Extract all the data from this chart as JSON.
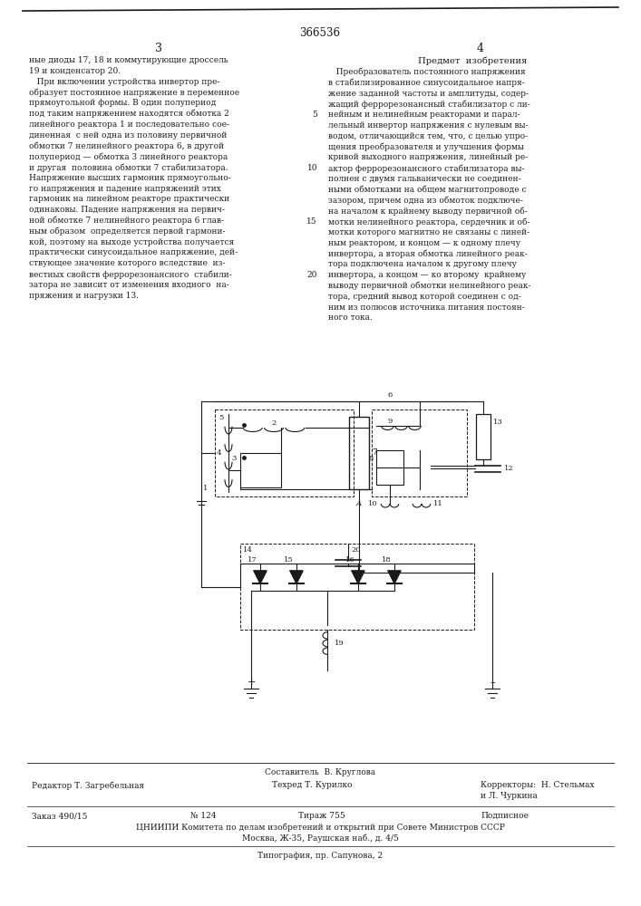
{
  "patent_number": "366536",
  "page_left": "3",
  "page_right": "4",
  "left_text_lines": [
    "ные диоды 17, 18 и коммутирующие дроссель",
    "19 и конденсатор 20.",
    "   При включении устройства инвертор пре-",
    "образует постоянное напряжение в переменное",
    "прямоугольной формы. В один полупериод",
    "под таким напряжением находятся обмотка 2",
    "линейного реактора 1 и последовательно сое-",
    "диненная  с ней одна из половину первичной",
    "обмотки 7 нелинейного реактора 6, в другой",
    "полупериод — обмотка 3 линейного реактора",
    "и другая  половина обмотки 7 стабилизатора.",
    "Напряжение высших гармоник прямоугольно-",
    "го напряжения и падение напряжений этих",
    "гармоник на линейном реакторе практически",
    "одинаковы. Падение напряжения на первич-",
    "ной обмотке 7 нелинейного реактора 6 глав-",
    "ным образом  определяется первой гармони-",
    "кой, поэтому на выходе устройства получается",
    "практически синусоидальное напряжение, дей-",
    "ствующее значение которого вследствие  из-",
    "вестных свойств феррорезонансного  стабили-",
    "затора не зависит от изменения входного  на-",
    "пряжения и нагрузки 13."
  ],
  "right_heading": "Предмет  изобретения",
  "right_text_lines": [
    "   Преобразователь постоянного напряжения",
    "в стабилизированное синусоидальное напря-",
    "жение заданной частоты и амплитуды, содер-",
    "жащий феррорезонансный стабилизатор с ли-",
    "нейным и нелинейным реакторами и парал-",
    "лельный инвертор напряжения с нулевым вы-",
    "водом, отличающийся тем, что, с целью упро-",
    "щения преобразователя и улучшения формы",
    "кривой выходного напряжения, линейный ре-",
    "актор феррорезонансного стабилизатора вы-",
    "полнен с двумя гальванически не соединен-",
    "ными обмотками на общем магнитопроводе с",
    "зазором, причем одна из обмоток подключе-",
    "на началом к крайнему выводу первичной об-",
    "мотки нелинейного реактора, сердечник и об-",
    "мотки которого магнитно не связаны с линей-",
    "ным реактором, и концом — к одному плечу",
    "инвертора, а вторая обмотка линейного реак-",
    "тора подключена началом к другому плечу",
    "инвертора, а концом — ко второму  крайнему",
    "выводу первичной обмотки нелинейного реак-",
    "тора, средний вывод которой соединен с од-",
    "ним из полюсов источника питания постоян-",
    "ного тока."
  ],
  "footer_sestavitel": "Составитель  В. Круглова",
  "footer_redaktor": "Редактор Т. Загребельная",
  "footer_tekhred": "Техред Т. Курилко",
  "footer_korrektor1": "Корректоры:  Н. Стельмах",
  "footer_korrektor2": "и Л. Чуркина",
  "footer_zakaz": "Заказ 490/15",
  "footer_num": "№ 124",
  "footer_tirazh": "Тираж 755",
  "footer_podpisnoe": "Подписное",
  "footer_cniipи": "ЦНИИПИ Комитета по делам изобретений и открытий при Совете Министров СССР",
  "footer_moskva": "Москва, Ж-35, Раушская наб., д. 4/5",
  "footer_tipografiya": "Типография, пр. Сапунова, 2",
  "bg_color": "#ffffff",
  "text_color": "#1a1a1a",
  "line_color": "#1a1a1a"
}
